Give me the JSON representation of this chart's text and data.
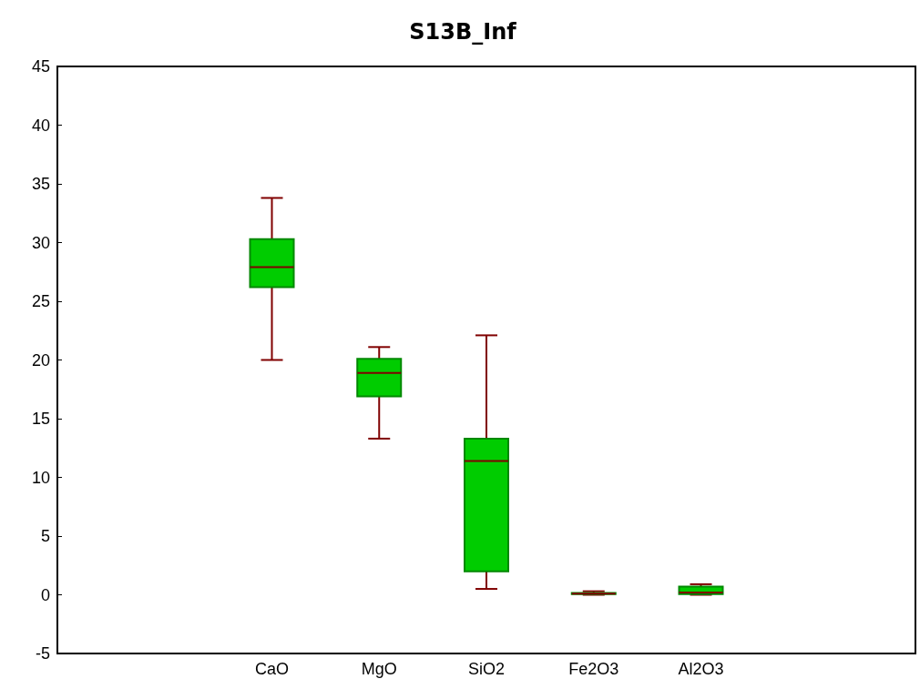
{
  "chart_data": {
    "type": "box",
    "title": "S13B_Inf",
    "categories": [
      null,
      null,
      "CaO",
      "MgO",
      "SiO2",
      "Fe2O3",
      "Al2O3",
      null,
      null
    ],
    "ylim": [
      -5,
      45
    ],
    "yticks": [
      -5,
      0,
      5,
      10,
      15,
      20,
      25,
      30,
      35,
      40,
      45
    ],
    "series": [
      {
        "color": "#00cc00",
        "boxes": [
          null,
          null,
          {
            "low": 20.0,
            "q1": 26.2,
            "median": 27.9,
            "q3": 30.3,
            "high": 33.8
          },
          {
            "low": 13.3,
            "q1": 16.9,
            "median": 18.9,
            "q3": 20.1,
            "high": 21.1
          },
          {
            "low": 0.5,
            "q1": 2.0,
            "median": 11.4,
            "q3": 13.3,
            "high": 22.1
          },
          {
            "low": 0,
            "q1": 0.05,
            "median": 0.1,
            "q3": 0.15,
            "high": 0.3
          },
          {
            "low": 0,
            "q1": 0.05,
            "median": 0.2,
            "q3": 0.7,
            "high": 0.9
          },
          null,
          null
        ]
      }
    ]
  }
}
